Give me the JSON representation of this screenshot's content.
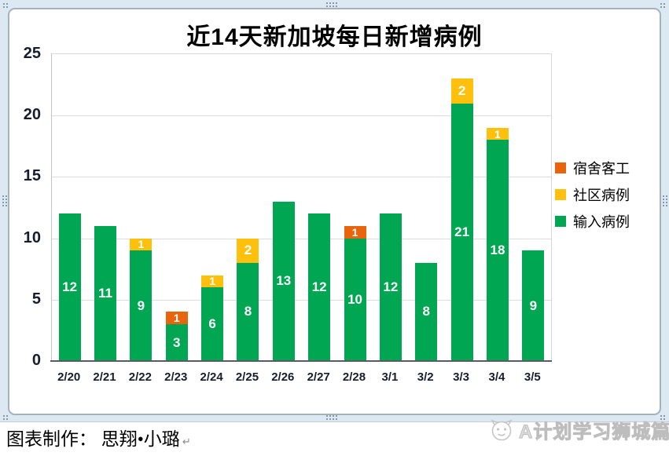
{
  "window": {
    "frame_color": "#dce9f2",
    "border_color": "#a3b2bb",
    "grip_color": "#7f93a2"
  },
  "chart_data": {
    "type": "bar",
    "stacked": true,
    "title": "近14天新加坡每日新增病例",
    "title_color": "#000000",
    "categories": [
      "2/20",
      "2/21",
      "2/22",
      "2/23",
      "2/24",
      "2/25",
      "2/26",
      "2/27",
      "2/28",
      "3/1",
      "3/2",
      "3/3",
      "3/4",
      "3/5"
    ],
    "series": [
      {
        "name": "宿舍客工",
        "color": "#e8650d",
        "values": [
          0,
          0,
          0,
          1,
          0,
          0,
          0,
          0,
          1,
          0,
          0,
          0,
          0,
          0
        ]
      },
      {
        "name": "社区病例",
        "color": "#fdc00d",
        "values": [
          0,
          0,
          1,
          0,
          1,
          2,
          0,
          0,
          0,
          0,
          0,
          2,
          1,
          0
        ]
      },
      {
        "name": "输入病例",
        "color": "#00a651",
        "values": [
          12,
          11,
          9,
          3,
          6,
          8,
          13,
          12,
          10,
          12,
          8,
          21,
          18,
          9
        ]
      }
    ],
    "totals": [
      12,
      11,
      10,
      4,
      7,
      10,
      13,
      12,
      11,
      12,
      8,
      23,
      19,
      9
    ],
    "ylim": [
      0,
      25
    ],
    "y_ticks": [
      25,
      20,
      15,
      10,
      5,
      0
    ],
    "grid": true,
    "legend_position": "right",
    "data_label_color": "#ffffff",
    "axis_label_color": "#161d2e",
    "gridline_color": "#dcdcdc"
  },
  "footer": {
    "credit": "图表制作： 思翔•小璐",
    "return_mark": "↵"
  },
  "watermark": {
    "text": "A计划学习狮城篇",
    "logo": "lion-face-logo",
    "color": "#bdbdbd"
  }
}
